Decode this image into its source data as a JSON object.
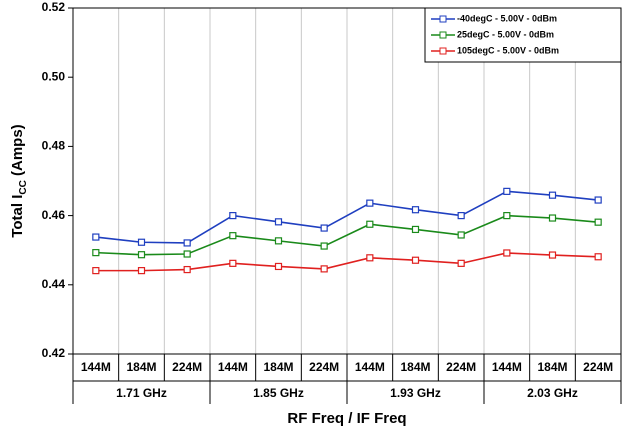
{
  "chart_data": {
    "type": "line",
    "y_label": {
      "text": "Total I",
      "subscript": "CC",
      "suffix": " (Amps)"
    },
    "x_label": "RF Freq / IF Freq",
    "categories": [
      "144M",
      "184M",
      "224M",
      "144M",
      "184M",
      "224M",
      "144M",
      "184M",
      "224M",
      "144M",
      "184M",
      "224M"
    ],
    "groups": [
      {
        "name": "1.71 GHz",
        "size": 3
      },
      {
        "name": "1.85 GHz",
        "size": 3
      },
      {
        "name": "1.93 GHz",
        "size": 3
      },
      {
        "name": "2.03 GHz",
        "size": 3
      }
    ],
    "series": [
      {
        "name": "-40degC - 5.00V - 0dBm",
        "color": "#1f3fc0",
        "values": [
          0.4538,
          0.4523,
          0.4521,
          0.46,
          0.4582,
          0.4564,
          0.4636,
          0.4617,
          0.46,
          0.467,
          0.4659,
          0.4645
        ]
      },
      {
        "name": "25degC - 5.00V - 0dBm",
        "color": "#1a8a1a",
        "values": [
          0.4493,
          0.4487,
          0.4489,
          0.4542,
          0.4527,
          0.4512,
          0.4575,
          0.456,
          0.4544,
          0.46,
          0.4593,
          0.4581
        ]
      },
      {
        "name": "105degC - 5.00V - 0dBm",
        "color": "#e0201f",
        "values": [
          0.4441,
          0.4441,
          0.4444,
          0.4462,
          0.4453,
          0.4446,
          0.4478,
          0.4471,
          0.4462,
          0.4492,
          0.4486,
          0.4481
        ]
      }
    ],
    "ylim": [
      0.42,
      0.52
    ],
    "yticks": [
      0.42,
      0.44,
      0.46,
      0.48,
      {
        "value": 0.5,
        "label": "0.50"
      },
      0.52
    ],
    "grid": true,
    "legend": "upper right"
  }
}
